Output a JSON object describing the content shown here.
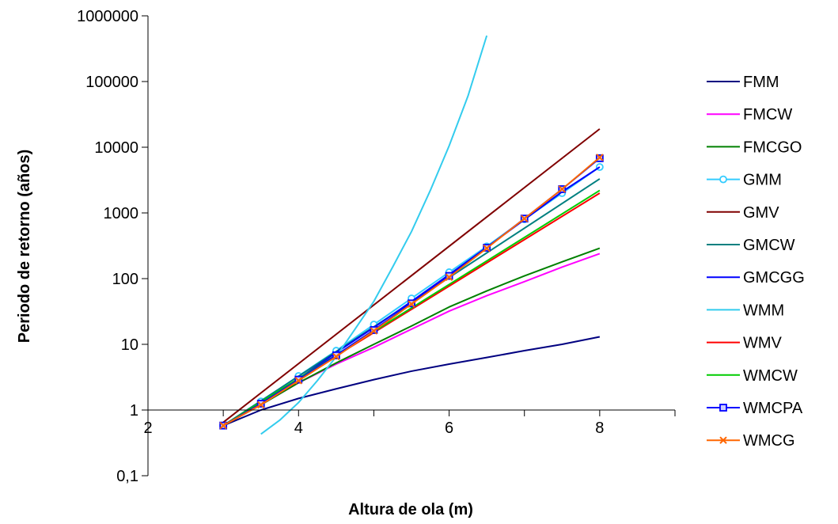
{
  "chart_data": {
    "type": "line",
    "xlabel": "Altura de ola (m)",
    "ylabel": "Periodo de retorno (años)",
    "xlim": [
      2,
      9
    ],
    "x_ticks": [
      2,
      4,
      6,
      8
    ],
    "y_scale": "log",
    "ylim": [
      0.1,
      1000000
    ],
    "y_tick_labels": [
      "0,1",
      "1",
      "10",
      "100",
      "1000",
      "10000",
      "100000",
      "1000000"
    ],
    "x_axis_crosses_at_y": 1,
    "legend_position": "right",
    "grid": false,
    "series": [
      {
        "name": "FMM",
        "color": "#000080",
        "marker": "none",
        "x": [
          3,
          3.5,
          4,
          4.5,
          5,
          5.5,
          6,
          6.5,
          7,
          7.5,
          8
        ],
        "y": [
          0.58,
          1.0,
          1.5,
          2.1,
          2.9,
          3.9,
          5.0,
          6.3,
          8.0,
          10.0,
          13.0
        ]
      },
      {
        "name": "FMCW",
        "color": "#FF00FF",
        "marker": "none",
        "x": [
          3,
          3.5,
          4,
          4.5,
          5,
          5.5,
          6,
          6.5,
          7,
          7.5,
          8
        ],
        "y": [
          0.58,
          1.2,
          2.6,
          5.0,
          9.0,
          17,
          32,
          55,
          90,
          150,
          240
        ]
      },
      {
        "name": "FMCGO",
        "color": "#008000",
        "marker": "none",
        "x": [
          3,
          3.5,
          4,
          4.5,
          5,
          5.5,
          6,
          6.5,
          7,
          7.5,
          8
        ],
        "y": [
          0.58,
          1.2,
          2.6,
          5.2,
          10,
          19,
          37,
          65,
          110,
          180,
          290
        ]
      },
      {
        "name": "GMM",
        "color": "#33CCFF",
        "marker": "circle",
        "x": [
          3,
          3.5,
          4,
          4.5,
          5,
          5.5,
          6,
          6.5,
          7,
          7.5,
          8
        ],
        "y": [
          0.58,
          1.35,
          3.3,
          8.0,
          20,
          50,
          125,
          310,
          800,
          2000,
          5000
        ]
      },
      {
        "name": "GMV",
        "color": "#800000",
        "marker": "none",
        "x": [
          3,
          8
        ],
        "y": [
          0.65,
          19000
        ]
      },
      {
        "name": "GMCW",
        "color": "#008080",
        "marker": "none",
        "x": [
          3,
          8
        ],
        "y": [
          0.58,
          3300
        ]
      },
      {
        "name": "GMCGG",
        "color": "#0000FF",
        "marker": "none",
        "x": [
          3,
          3.5,
          4,
          4.5,
          5,
          5.5,
          6,
          6.5,
          7,
          7.5,
          8
        ],
        "y": [
          0.58,
          1.3,
          3.0,
          7.5,
          18,
          45,
          115,
          300,
          790,
          2100,
          5000
        ]
      },
      {
        "name": "WMM",
        "color": "#33CCEE",
        "marker": "none",
        "x": [
          3.5,
          3.75,
          4,
          4.25,
          4.5,
          4.75,
          5,
          5.25,
          5.5,
          5.75,
          6,
          6.25,
          6.5
        ],
        "y": [
          0.43,
          0.7,
          1.3,
          2.8,
          6.5,
          17,
          45,
          150,
          520,
          2200,
          10500,
          60000,
          500000
        ]
      },
      {
        "name": "WMV",
        "color": "#FF0000",
        "marker": "none",
        "x": [
          3,
          8
        ],
        "y": [
          0.58,
          2000
        ]
      },
      {
        "name": "WMCW",
        "color": "#00CC00",
        "marker": "none",
        "x": [
          3,
          8
        ],
        "y": [
          0.58,
          2200
        ]
      },
      {
        "name": "WMCPA",
        "color": "#0000FF",
        "marker": "square",
        "x": [
          3,
          3.5,
          4,
          4.5,
          5,
          5.5,
          6,
          6.5,
          7,
          7.5,
          8
        ],
        "y": [
          0.58,
          1.25,
          2.9,
          6.8,
          16.5,
          42,
          110,
          295,
          820,
          2300,
          6800
        ]
      },
      {
        "name": "WMCG",
        "color": "#FF6600",
        "marker": "x",
        "x": [
          3,
          3.5,
          4,
          4.5,
          5,
          5.5,
          6,
          6.5,
          7,
          7.5,
          8
        ],
        "y": [
          0.58,
          1.2,
          2.8,
          6.5,
          16,
          41,
          105,
          290,
          820,
          2300,
          7000
        ]
      }
    ]
  }
}
